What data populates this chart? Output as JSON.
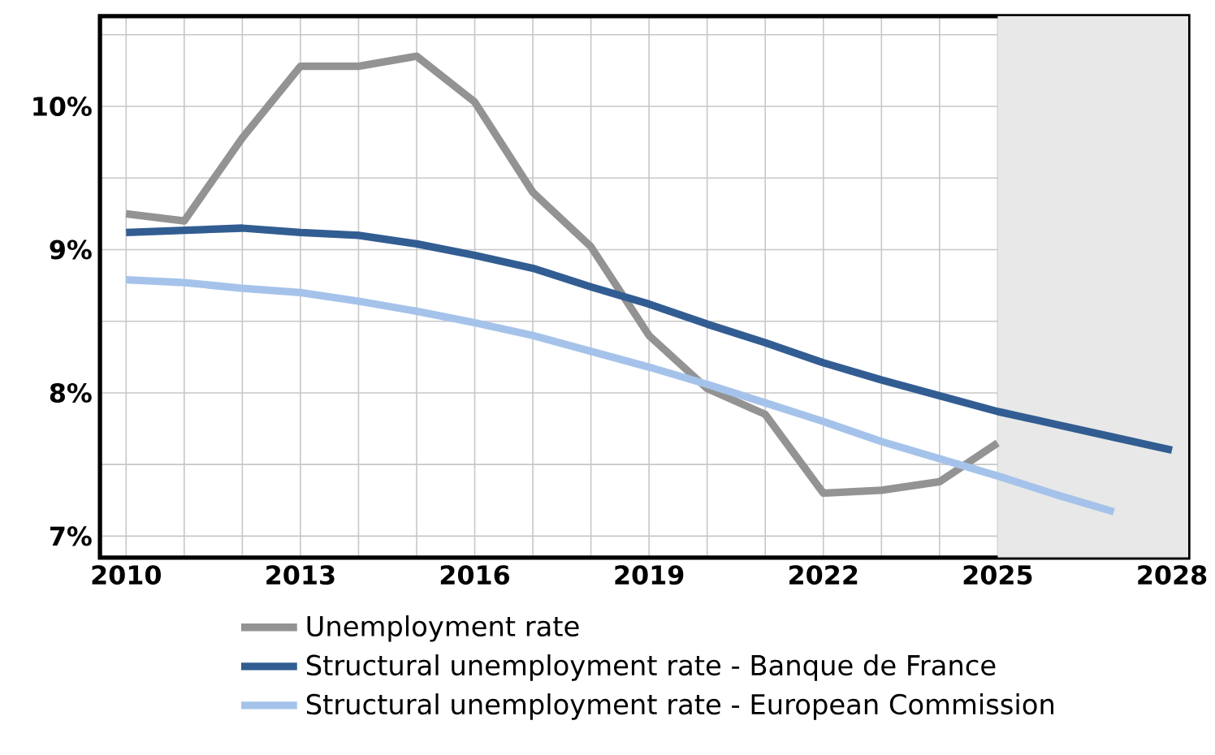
{
  "chart_data": {
    "type": "line",
    "xlim": [
      2009.55,
      2028.28
    ],
    "ylim": [
      6.85,
      10.63
    ],
    "xticks": [
      {
        "value": 2010,
        "label": "2010"
      },
      {
        "value": 2011,
        "label": null
      },
      {
        "value": 2012,
        "label": null
      },
      {
        "value": 2013,
        "label": "2013"
      },
      {
        "value": 2014,
        "label": null
      },
      {
        "value": 2015,
        "label": null
      },
      {
        "value": 2016,
        "label": "2016"
      },
      {
        "value": 2017,
        "label": null
      },
      {
        "value": 2018,
        "label": null
      },
      {
        "value": 2019,
        "label": "2019"
      },
      {
        "value": 2020,
        "label": null
      },
      {
        "value": 2021,
        "label": null
      },
      {
        "value": 2022,
        "label": "2022"
      },
      {
        "value": 2023,
        "label": null
      },
      {
        "value": 2024,
        "label": null
      },
      {
        "value": 2025,
        "label": "2025"
      },
      {
        "value": 2026,
        "label": null
      },
      {
        "value": 2027,
        "label": null
      },
      {
        "value": 2028,
        "label": "2028"
      }
    ],
    "yticks": [
      {
        "value": 7,
        "label": "7%"
      },
      {
        "value": 7.5,
        "label": null
      },
      {
        "value": 8,
        "label": "8%"
      },
      {
        "value": 8.5,
        "label": null
      },
      {
        "value": 9,
        "label": "9%"
      },
      {
        "value": 9.5,
        "label": null
      },
      {
        "value": 10,
        "label": "10%"
      },
      {
        "value": 10.5,
        "label": null
      }
    ],
    "grid": true,
    "legend": "bottom",
    "bands": [
      {
        "axis": "x",
        "from": 2025,
        "to": 2028.28,
        "color": "#e8e8e8"
      }
    ],
    "series": [
      {
        "name": "Unemployment rate",
        "color": "#939393",
        "x": [
          2010,
          2011,
          2012,
          2013,
          2014,
          2015,
          2016,
          2017,
          2018,
          2019,
          2020,
          2021,
          2022,
          2023,
          2024,
          2025
        ],
        "values": [
          9.25,
          9.2,
          9.78,
          10.28,
          10.28,
          10.35,
          10.03,
          9.4,
          9.02,
          8.4,
          8.03,
          7.85,
          7.3,
          7.32,
          7.38,
          7.65
        ]
      },
      {
        "name": "Structural unemployment rate - Banque de France",
        "color": "#325d92",
        "x": [
          2010,
          2012,
          2013,
          2014,
          2015,
          2016,
          2017,
          2018,
          2019,
          2020,
          2021,
          2022,
          2023,
          2024,
          2025,
          2026,
          2027,
          2028
        ],
        "values": [
          9.12,
          9.15,
          9.12,
          9.1,
          9.04,
          8.96,
          8.87,
          8.74,
          8.62,
          8.48,
          8.35,
          8.21,
          8.09,
          7.98,
          7.87,
          7.78,
          7.69,
          7.6
        ]
      },
      {
        "name": "Structural unemployment rate - European Commission",
        "color": "#a5c3ea",
        "x": [
          2010,
          2011,
          2012,
          2013,
          2014,
          2015,
          2016,
          2017,
          2018,
          2019,
          2020,
          2021,
          2022,
          2023,
          2024,
          2025,
          2026,
          2027
        ],
        "values": [
          8.79,
          8.77,
          8.73,
          8.7,
          8.64,
          8.57,
          8.49,
          8.4,
          8.29,
          8.18,
          8.06,
          7.93,
          7.8,
          7.66,
          7.54,
          7.42,
          7.29,
          7.17
        ]
      }
    ]
  }
}
